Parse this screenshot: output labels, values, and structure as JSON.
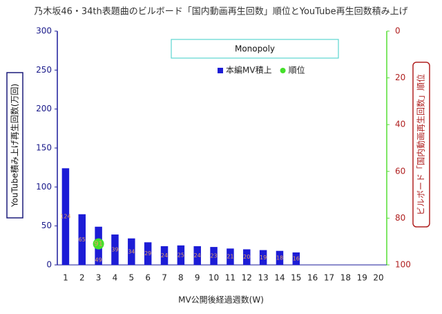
{
  "chart_data": {
    "type": "bar",
    "title": "乃木坂46・34th表題曲のビルボード「国内動画再生回数」順位とYouTube再生回数積み上げ",
    "annotation": "Monopoly",
    "x_label": "MV公開後経過週数(W)",
    "y_label": "YouTube積み上げ再生回数(万回)",
    "y2_label": "ビルボード「国内動画再生回数」順位",
    "categories": [
      "1",
      "2",
      "3",
      "4",
      "5",
      "6",
      "7",
      "8",
      "9",
      "10",
      "11",
      "12",
      "13",
      "14",
      "15",
      "16",
      "17",
      "18",
      "19",
      "20"
    ],
    "series": [
      {
        "name": "本編MV積上",
        "color": "#1c1cd6",
        "type": "bar",
        "values": [
          124,
          65,
          49,
          39,
          34,
          29,
          24,
          25,
          24,
          23,
          21,
          20,
          19,
          18,
          16,
          null,
          null,
          null,
          null,
          null
        ]
      },
      {
        "name": "順位",
        "color": "#44e02a",
        "type": "scatter",
        "axis": "y2",
        "values": [
          null,
          null,
          91,
          null,
          null,
          null,
          null,
          null,
          null,
          null,
          null,
          null,
          null,
          null,
          null,
          null,
          null,
          null,
          null,
          null
        ]
      }
    ],
    "ylim": [
      0,
      300
    ],
    "yticks": [
      0,
      50,
      100,
      150,
      200,
      250,
      300
    ],
    "y2lim": [
      0,
      100
    ],
    "y2ticks": [
      0,
      20,
      40,
      60,
      80,
      100
    ],
    "y2_inverted": true,
    "grid": false,
    "legend": "top"
  }
}
